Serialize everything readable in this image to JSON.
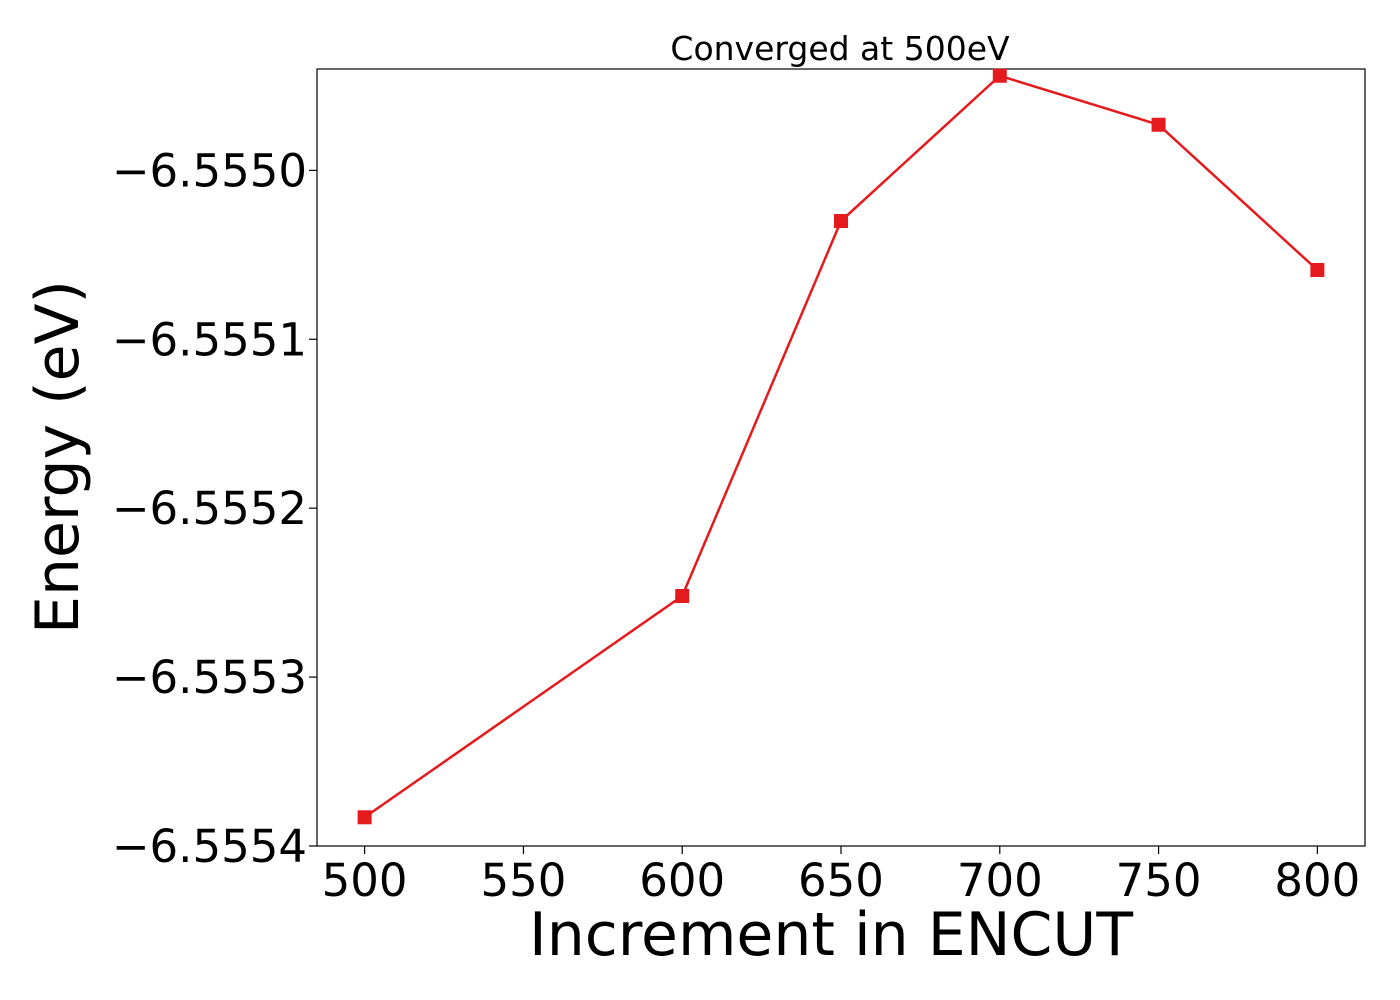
{
  "chart_data": {
    "type": "line",
    "title": "Converged at 500eV",
    "xlabel": "Increment in ENCUT",
    "ylabel": "Energy (eV)",
    "x_ticks": [
      500,
      550,
      600,
      650,
      700,
      750,
      800
    ],
    "x_tick_labels": [
      "500",
      "550",
      "600",
      "650",
      "700",
      "750",
      "800"
    ],
    "y_ticks": [
      -6.5554,
      -6.5553,
      -6.5552,
      -6.5551,
      -6.555
    ],
    "y_tick_labels": [
      "−6.5554",
      "−6.5553",
      "−6.5552",
      "−6.5551",
      "−6.5550"
    ],
    "xlim": [
      485,
      815
    ],
    "ylim": [
      -6.5554,
      -6.55494
    ],
    "grid": false,
    "series": [
      {
        "color": "#e41a1c",
        "marker": "square",
        "x": [
          500,
          600,
          650,
          700,
          750,
          800
        ],
        "y": [
          -6.555383,
          -6.555252,
          -6.55503,
          -6.554944,
          -6.554973,
          -6.555059
        ]
      }
    ]
  }
}
